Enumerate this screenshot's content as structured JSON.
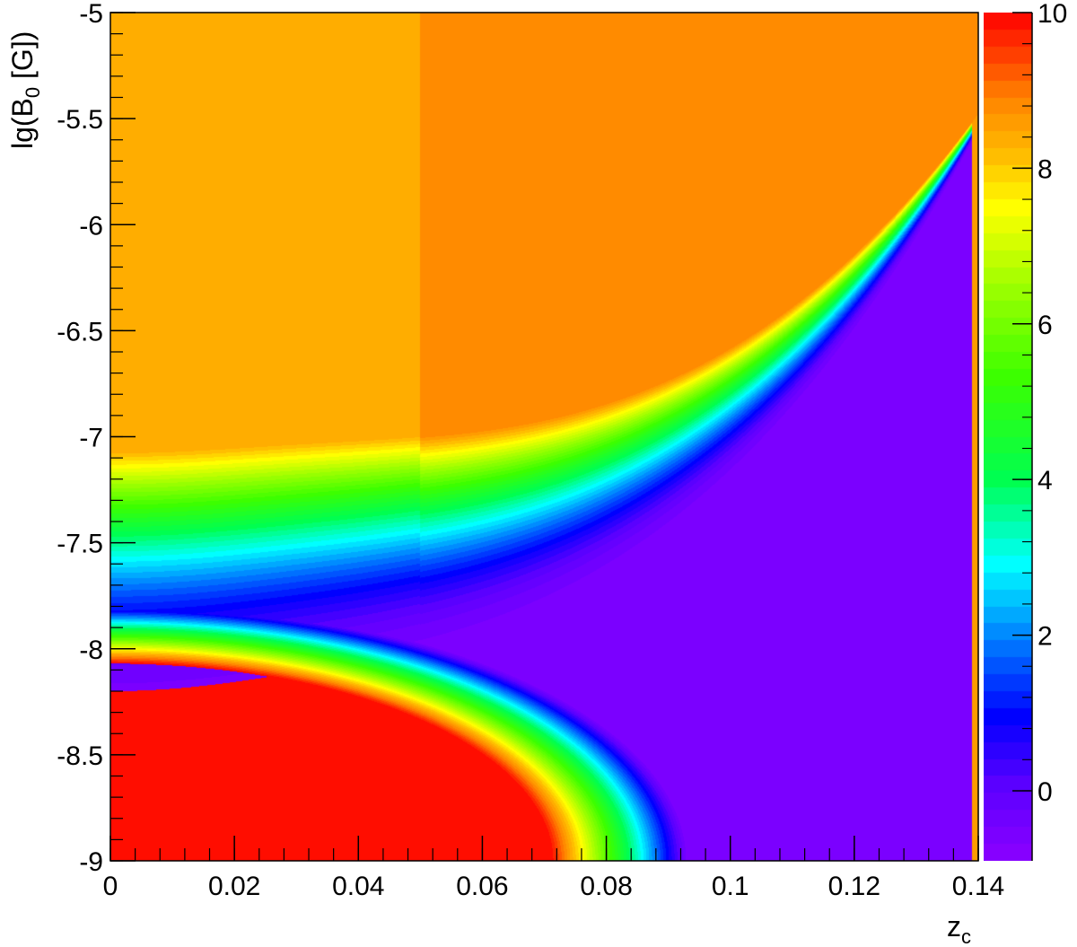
{
  "chart_data": {
    "type": "heatmap",
    "title": "",
    "xlabel": "z",
    "xlabel_subscript": "c",
    "ylabel": "lg(B",
    "ylabel_subscript": "0",
    "ylabel_suffix": " [G])",
    "xlim": [
      0,
      0.14
    ],
    "ylim": [
      -9,
      -5
    ],
    "zlim": [
      -0.9,
      10
    ],
    "x_ticks": [
      "0",
      "0.02",
      "0.04",
      "0.06",
      "0.08",
      "0.1",
      "0.12",
      "0.14"
    ],
    "y_ticks": [
      "-5",
      "-5.5",
      "-6",
      "-6.5",
      "-7",
      "-7.5",
      "-8",
      "-8.5",
      "-9"
    ],
    "z_ticks": [
      "0",
      "2",
      "4",
      "6",
      "8",
      "10"
    ],
    "colorbar": true,
    "grid": false,
    "palette": "rainbow (violet → blue → cyan → green → yellow → orange → red)",
    "regions": [
      {
        "description_value": 10,
        "location": "lower-left, z_c < ~0.07, lg(B0) < ~-8.1"
      },
      {
        "description_value": 8.3,
        "location": "upper-left plateau, z_c < 0.05"
      },
      {
        "description_value": 8.8,
        "location": "upper-right plateau, z_c > 0.05"
      },
      {
        "description_value": -0.5,
        "location": "violet band, min along diagonal near lg(B0) ≈ -7.8 at z_c=0"
      }
    ]
  }
}
